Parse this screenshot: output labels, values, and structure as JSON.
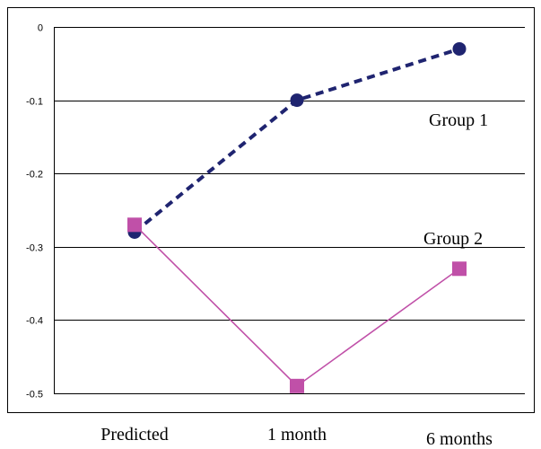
{
  "chart_data": {
    "type": "line",
    "categories": [
      "Predicted",
      "1  month",
      "6  months"
    ],
    "ylim": [
      -0.5,
      0
    ],
    "yticks": [
      "0",
      "-0.1",
      "-0.2",
      "-0.3",
      "-0.4",
      "-0.5"
    ],
    "ytick_values": [
      0,
      -0.1,
      -0.2,
      -0.3,
      -0.4,
      -0.5
    ],
    "grid": true,
    "series": [
      {
        "name": "Group  1",
        "values": [
          -0.28,
          -0.1,
          -0.03
        ],
        "color": "#1f2470",
        "style": "dashed",
        "marker": "circle"
      },
      {
        "name": "Group  2",
        "values": [
          -0.27,
          -0.49,
          -0.33
        ],
        "color": "#c050a8",
        "style": "solid",
        "marker": "square"
      }
    ],
    "title": "",
    "xlabel": "",
    "ylabel": ""
  }
}
